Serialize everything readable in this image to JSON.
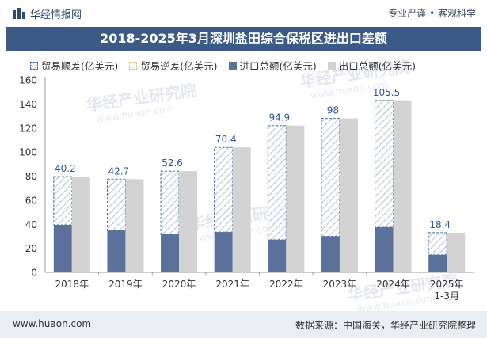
{
  "header": {
    "brand": "华经情报网",
    "tagline": "专业严谨 • 客观科学"
  },
  "title": "2018-2025年3月深圳盐田综合保税区进出口差额",
  "legend": {
    "surplus": "贸易顺差(亿美元)",
    "deficit": "贸易逆差(亿美元)",
    "import": "进口总额(亿美元)",
    "export": "出口总额(亿美元)"
  },
  "watermark": "华经产业研究院",
  "watermark_url": "www.huaon.com",
  "footer": {
    "site": "www.huaon.com",
    "source": "数据来源：中国海关，华经产业研究院整理"
  },
  "colors": {
    "header_bg": "#3c5a86",
    "import": "#5b719c",
    "export": "#d3d3d3",
    "surplus_border": "#4a6fa0",
    "label": "#2f5597"
  },
  "chart_data": {
    "type": "bar",
    "categories": [
      "2018年",
      "2019年",
      "2020年",
      "2021年",
      "2022年",
      "2023年",
      "2024年",
      "2025年\n1-3月"
    ],
    "series": [
      {
        "name": "进口总额(亿美元)",
        "values": [
          39.5,
          34.8,
          31.6,
          33.5,
          27.1,
          30.0,
          37.5,
          14.6
        ]
      },
      {
        "name": "出口总额(亿美元)",
        "values": [
          79.7,
          77.5,
          84.2,
          103.9,
          122.0,
          128.0,
          143.0,
          33.0
        ]
      },
      {
        "name": "贸易顺差(亿美元)",
        "values": [
          40.2,
          42.7,
          52.6,
          70.4,
          94.9,
          98,
          105.5,
          18.4
        ]
      },
      {
        "name": "贸易逆差(亿美元)",
        "values": [
          0,
          0,
          0,
          0,
          0,
          0,
          0,
          0
        ]
      }
    ],
    "ylim": [
      0,
      160
    ],
    "yticks": [
      0,
      20,
      40,
      60,
      80,
      100,
      120,
      140,
      160
    ]
  }
}
